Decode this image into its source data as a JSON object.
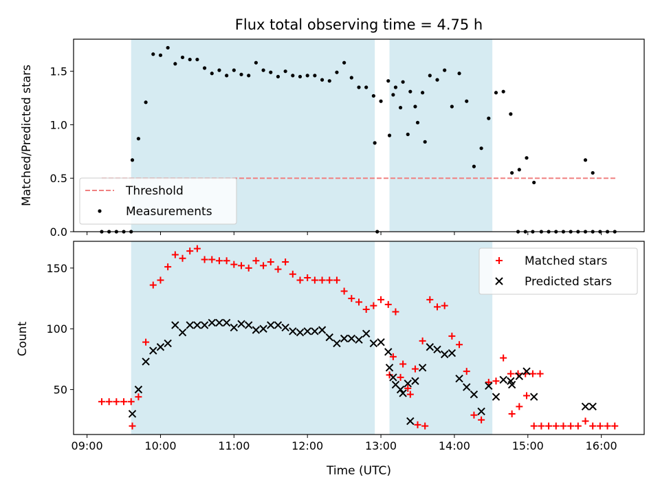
{
  "chart_data": [
    {
      "type": "scatter",
      "title": "Flux total observing time = 4.75 h",
      "xlabel": "",
      "ylabel": "Matched/Predicted stars",
      "ylim": [
        0,
        1.8
      ],
      "yticks": [
        "0.0",
        "0.5",
        "1.0",
        "1.5"
      ],
      "xlim": [
        "08:49",
        "16:35"
      ],
      "shaded_spans": [
        [
          "09:36",
          "12:55"
        ],
        [
          "13:07",
          "14:31"
        ]
      ],
      "shade_color": "#add8e6",
      "legend_position": "lower-left",
      "threshold": {
        "name": "Threshold",
        "y": 0.5,
        "x_range": [
          "09:12",
          "16:13"
        ],
        "color": "#f08080"
      },
      "series": [
        {
          "name": "Measurements",
          "color": "#000000",
          "marker": "dot",
          "points": [
            [
              "09:12",
              0
            ],
            [
              "09:18",
              0
            ],
            [
              "09:24",
              0
            ],
            [
              "09:30",
              0
            ],
            [
              "09:36",
              0
            ],
            [
              "09:37",
              0.67
            ],
            [
              "09:42",
              0.87
            ],
            [
              "09:48",
              1.21
            ],
            [
              "09:54",
              1.66
            ],
            [
              "10:00",
              1.65
            ],
            [
              "10:06",
              1.72
            ],
            [
              "10:12",
              1.57
            ],
            [
              "10:18",
              1.63
            ],
            [
              "10:24",
              1.61
            ],
            [
              "10:30",
              1.61
            ],
            [
              "10:36",
              1.53
            ],
            [
              "10:42",
              1.48
            ],
            [
              "10:48",
              1.51
            ],
            [
              "10:54",
              1.46
            ],
            [
              "11:00",
              1.51
            ],
            [
              "11:06",
              1.47
            ],
            [
              "11:12",
              1.46
            ],
            [
              "11:18",
              1.58
            ],
            [
              "11:24",
              1.51
            ],
            [
              "11:30",
              1.49
            ],
            [
              "11:36",
              1.45
            ],
            [
              "11:42",
              1.5
            ],
            [
              "11:48",
              1.46
            ],
            [
              "11:54",
              1.45
            ],
            [
              "12:00",
              1.46
            ],
            [
              "12:06",
              1.46
            ],
            [
              "12:12",
              1.42
            ],
            [
              "12:18",
              1.41
            ],
            [
              "12:24",
              1.49
            ],
            [
              "12:30",
              1.58
            ],
            [
              "12:36",
              1.44
            ],
            [
              "12:42",
              1.35
            ],
            [
              "12:48",
              1.35
            ],
            [
              "12:54",
              1.27
            ],
            [
              "13:00",
              1.22
            ],
            [
              "13:06",
              1.41
            ],
            [
              "13:12",
              1.35
            ],
            [
              "13:18",
              1.4
            ],
            [
              "13:24",
              1.31
            ],
            [
              "13:30",
              1.02
            ],
            [
              "13:36",
              0.84
            ],
            [
              "12:55",
              0.83
            ],
            [
              "12:57",
              0.0
            ],
            [
              "13:07",
              0.9
            ],
            [
              "13:10",
              1.28
            ],
            [
              "13:16",
              1.16
            ],
            [
              "13:22",
              0.91
            ],
            [
              "13:28",
              1.17
            ],
            [
              "13:34",
              1.3
            ],
            [
              "13:40",
              1.46
            ],
            [
              "13:46",
              1.42
            ],
            [
              "13:52",
              1.51
            ],
            [
              "13:58",
              1.17
            ],
            [
              "14:04",
              1.48
            ],
            [
              "14:10",
              1.22
            ],
            [
              "14:16",
              0.61
            ],
            [
              "14:22",
              0.78
            ],
            [
              "14:28",
              1.06
            ],
            [
              "14:34",
              1.3
            ],
            [
              "14:40",
              1.31
            ],
            [
              "14:46",
              1.1
            ],
            [
              "14:52",
              0
            ],
            [
              "14:58",
              0
            ],
            [
              "15:04",
              0
            ],
            [
              "14:47",
              0.55
            ],
            [
              "14:53",
              0.58
            ],
            [
              "14:59",
              0.69
            ],
            [
              "15:05",
              0.46
            ],
            [
              "15:11",
              0
            ],
            [
              "15:17",
              0
            ],
            [
              "15:23",
              0
            ],
            [
              "15:29",
              0
            ],
            [
              "15:35",
              0
            ],
            [
              "15:41",
              0
            ],
            [
              "15:47",
              0
            ],
            [
              "15:53",
              0
            ],
            [
              "15:47",
              0.67
            ],
            [
              "15:53",
              0.55
            ],
            [
              "15:59",
              0
            ],
            [
              "16:05",
              0
            ],
            [
              "16:11",
              0
            ]
          ]
        }
      ]
    },
    {
      "type": "scatter",
      "title": "",
      "xlabel": "Time (UTC)",
      "ylabel": "Count",
      "ylim": [
        13,
        172
      ],
      "yticks": [
        "50",
        "100",
        "150"
      ],
      "xlim": [
        "08:49",
        "16:35"
      ],
      "xticks": [
        "09:00",
        "10:00",
        "11:00",
        "12:00",
        "13:00",
        "14:00",
        "15:00",
        "16:00"
      ],
      "shaded_spans": [
        [
          "09:36",
          "12:55"
        ],
        [
          "13:07",
          "14:31"
        ]
      ],
      "legend_position": "upper-right",
      "series": [
        {
          "name": "Matched stars",
          "color": "#ff0000",
          "marker": "plus",
          "points": [
            [
              "09:12",
              40
            ],
            [
              "09:18",
              40
            ],
            [
              "09:24",
              40
            ],
            [
              "09:30",
              40
            ],
            [
              "09:36",
              40
            ],
            [
              "09:37",
              20
            ],
            [
              "09:42",
              44
            ],
            [
              "09:48",
              89
            ],
            [
              "09:54",
              136
            ],
            [
              "10:00",
              140
            ],
            [
              "10:06",
              151
            ],
            [
              "10:12",
              161
            ],
            [
              "10:18",
              158
            ],
            [
              "10:24",
              164
            ],
            [
              "10:30",
              166
            ],
            [
              "10:36",
              157
            ],
            [
              "10:42",
              157
            ],
            [
              "10:48",
              156
            ],
            [
              "10:54",
              156
            ],
            [
              "11:00",
              153
            ],
            [
              "11:06",
              152
            ],
            [
              "11:12",
              150
            ],
            [
              "11:18",
              156
            ],
            [
              "11:24",
              152
            ],
            [
              "11:30",
              155
            ],
            [
              "11:36",
              149
            ],
            [
              "11:42",
              155
            ],
            [
              "11:48",
              145
            ],
            [
              "11:54",
              140
            ],
            [
              "12:00",
              142
            ],
            [
              "12:06",
              140
            ],
            [
              "12:12",
              140
            ],
            [
              "12:18",
              140
            ],
            [
              "12:24",
              140
            ],
            [
              "12:30",
              131
            ],
            [
              "12:36",
              125
            ],
            [
              "12:42",
              122
            ],
            [
              "12:48",
              116
            ],
            [
              "12:54",
              119
            ],
            [
              "13:00",
              124
            ],
            [
              "13:06",
              120
            ],
            [
              "13:12",
              114
            ],
            [
              "13:18",
              71
            ],
            [
              "13:24",
              46
            ],
            [
              "13:30",
              21
            ],
            [
              "13:36",
              20
            ],
            [
              "13:07",
              62
            ],
            [
              "13:10",
              77
            ],
            [
              "13:16",
              60
            ],
            [
              "13:22",
              51
            ],
            [
              "13:28",
              67
            ],
            [
              "13:34",
              90
            ],
            [
              "13:40",
              124
            ],
            [
              "13:46",
              118
            ],
            [
              "13:52",
              119
            ],
            [
              "13:58",
              94
            ],
            [
              "14:04",
              87
            ],
            [
              "14:10",
              65
            ],
            [
              "14:16",
              29
            ],
            [
              "14:22",
              25
            ],
            [
              "14:28",
              56
            ],
            [
              "14:34",
              57
            ],
            [
              "14:40",
              76
            ],
            [
              "14:46",
              63
            ],
            [
              "14:52",
              63
            ],
            [
              "14:58",
              63
            ],
            [
              "15:04",
              63
            ],
            [
              "15:10",
              63
            ],
            [
              "14:47",
              30
            ],
            [
              "14:53",
              36
            ],
            [
              "14:59",
              45
            ],
            [
              "15:05",
              20
            ],
            [
              "15:11",
              20
            ],
            [
              "15:17",
              20
            ],
            [
              "15:23",
              20
            ],
            [
              "15:29",
              20
            ],
            [
              "15:35",
              20
            ],
            [
              "15:41",
              20
            ],
            [
              "15:47",
              24
            ],
            [
              "15:53",
              20
            ],
            [
              "15:59",
              20
            ],
            [
              "16:05",
              20
            ],
            [
              "16:11",
              20
            ]
          ]
        },
        {
          "name": "Predicted stars",
          "color": "#000000",
          "marker": "x",
          "points": [
            [
              "09:37",
              30
            ],
            [
              "09:42",
              50
            ],
            [
              "09:48",
              73
            ],
            [
              "09:54",
              82
            ],
            [
              "10:00",
              85
            ],
            [
              "10:06",
              88
            ],
            [
              "10:12",
              103
            ],
            [
              "10:18",
              97
            ],
            [
              "10:24",
              103
            ],
            [
              "10:30",
              103
            ],
            [
              "10:36",
              103
            ],
            [
              "10:42",
              105
            ],
            [
              "10:48",
              105
            ],
            [
              "10:54",
              105
            ],
            [
              "11:00",
              101
            ],
            [
              "11:06",
              104
            ],
            [
              "11:12",
              103
            ],
            [
              "11:18",
              99
            ],
            [
              "11:24",
              100
            ],
            [
              "11:30",
              103
            ],
            [
              "11:36",
              103
            ],
            [
              "11:42",
              101
            ],
            [
              "11:48",
              98
            ],
            [
              "11:54",
              97
            ],
            [
              "12:00",
              98
            ],
            [
              "12:06",
              98
            ],
            [
              "12:12",
              99
            ],
            [
              "12:18",
              93
            ],
            [
              "12:24",
              88
            ],
            [
              "12:30",
              92
            ],
            [
              "12:36",
              92
            ],
            [
              "12:42",
              91
            ],
            [
              "12:48",
              96
            ],
            [
              "12:54",
              88
            ],
            [
              "13:00",
              89
            ],
            [
              "13:06",
              81
            ],
            [
              "13:12",
              54
            ],
            [
              "13:18",
              47
            ],
            [
              "13:24",
              24
            ],
            [
              "13:07",
              68
            ],
            [
              "13:10",
              60
            ],
            [
              "13:16",
              50
            ],
            [
              "13:22",
              55
            ],
            [
              "13:28",
              57
            ],
            [
              "13:34",
              68
            ],
            [
              "13:40",
              85
            ],
            [
              "13:46",
              83
            ],
            [
              "13:52",
              79
            ],
            [
              "13:58",
              80
            ],
            [
              "14:04",
              59
            ],
            [
              "14:10",
              52
            ],
            [
              "14:16",
              46
            ],
            [
              "14:22",
              32
            ],
            [
              "14:28",
              53
            ],
            [
              "14:34",
              44
            ],
            [
              "14:40",
              58
            ],
            [
              "14:46",
              57
            ],
            [
              "14:47",
              54
            ],
            [
              "14:53",
              61
            ],
            [
              "14:59",
              65
            ],
            [
              "15:05",
              44
            ],
            [
              "15:47",
              36
            ],
            [
              "15:53",
              36
            ]
          ]
        }
      ]
    }
  ]
}
